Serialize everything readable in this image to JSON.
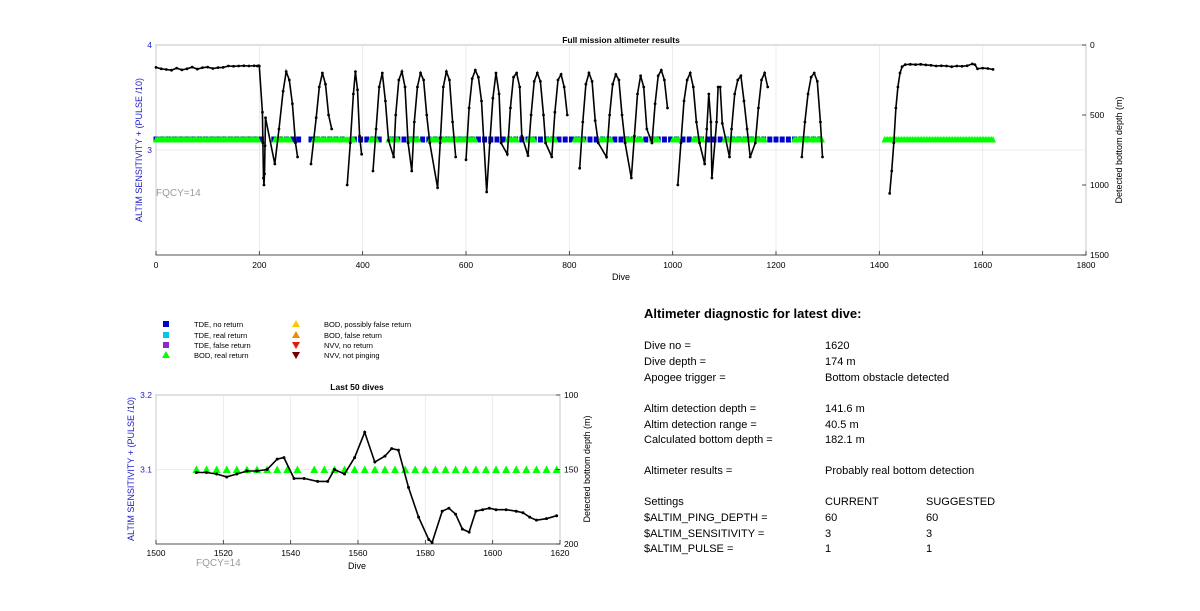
{
  "chart_data": [
    {
      "id": "full",
      "type": "scatter",
      "title": "Full mission altimeter results",
      "xlabel": "Dive",
      "ylabel_left": "ALTIM SENSITIVITY + (PULSE /10)",
      "ylabel_right": "Detected bottom depth (m)",
      "annotation": "FQCY=14",
      "xlim": [
        0,
        1800
      ],
      "xticks": [
        0,
        200,
        400,
        600,
        800,
        1000,
        1200,
        1400,
        1600,
        1800
      ],
      "ylim_left": [
        2.0,
        4.0
      ],
      "yticks_left": [
        3,
        4
      ],
      "ylim_right": [
        0,
        1500
      ],
      "yticks_right": [
        0,
        500,
        1000,
        1500
      ],
      "grid": true,
      "altim_setting_value": 3.1,
      "tde_no_return_dives": [
        0,
        12,
        24,
        36,
        48,
        60,
        72,
        84,
        96,
        108,
        120,
        132,
        144,
        156,
        168,
        180,
        192,
        204,
        228,
        240,
        252,
        264,
        276,
        300,
        312,
        324,
        336,
        348,
        360,
        384,
        396,
        408,
        420,
        432,
        456,
        468,
        480,
        492,
        504,
        516,
        528,
        540,
        552,
        564,
        576,
        588,
        600,
        612,
        624,
        636,
        648,
        660,
        672,
        684,
        696,
        708,
        720,
        732,
        744,
        756,
        768,
        780,
        792,
        804,
        816,
        828,
        840,
        852,
        864,
        876,
        888,
        900,
        912,
        924,
        936,
        948,
        960,
        972,
        984,
        996,
        1008,
        1020,
        1032,
        1044,
        1056,
        1068,
        1080,
        1092,
        1104,
        1116,
        1128,
        1140,
        1152,
        1164,
        1176,
        1188,
        1200,
        1212,
        1224,
        1236,
        1248,
        1260,
        1272,
        1284
      ],
      "bod_real_return_ranges": [
        [
          0,
          200
        ],
        [
          230,
          262
        ],
        [
          305,
          385
        ],
        [
          415,
          428
        ],
        [
          450,
          470
        ],
        [
          490,
          510
        ],
        [
          530,
          545
        ],
        [
          555,
          620
        ],
        [
          680,
          700
        ],
        [
          720,
          732
        ],
        [
          755,
          775
        ],
        [
          810,
          830
        ],
        [
          860,
          882
        ],
        [
          910,
          940
        ],
        [
          960,
          972
        ],
        [
          1000,
          1012
        ],
        [
          1040,
          1060
        ],
        [
          1100,
          1180
        ],
        [
          1235,
          1290
        ],
        [
          1410,
          1620
        ]
      ],
      "detected_bottom_depth_m": [
        [
          0,
          160
        ],
        [
          10,
          170
        ],
        [
          20,
          175
        ],
        [
          30,
          180
        ],
        [
          40,
          165
        ],
        [
          50,
          178
        ],
        [
          60,
          170
        ],
        [
          70,
          158
        ],
        [
          80,
          172
        ],
        [
          90,
          162
        ],
        [
          100,
          158
        ],
        [
          110,
          168
        ],
        [
          120,
          162
        ],
        [
          130,
          160
        ],
        [
          140,
          150
        ],
        [
          150,
          152
        ],
        [
          160,
          150
        ],
        [
          170,
          148
        ],
        [
          180,
          150
        ],
        [
          190,
          148
        ],
        [
          196,
          150
        ],
        [
          199,
          148
        ],
        [
          200,
          150
        ],
        [
          206,
          480
        ],
        [
          207,
          700
        ],
        [
          208,
          950
        ],
        [
          209,
          1000
        ],
        [
          210,
          920
        ],
        [
          211,
          720
        ],
        [
          212,
          520
        ],
        [
          230,
          850
        ],
        [
          238,
          600
        ],
        [
          246,
          330
        ],
        [
          252,
          190
        ],
        [
          258,
          250
        ],
        [
          264,
          420
        ],
        [
          270,
          700
        ],
        [
          274,
          800
        ],
        [
          300,
          850
        ],
        [
          310,
          520
        ],
        [
          316,
          300
        ],
        [
          322,
          200
        ],
        [
          328,
          280
        ],
        [
          334,
          500
        ],
        [
          340,
          600
        ],
        [
          370,
          1000
        ],
        [
          376,
          700
        ],
        [
          382,
          350
        ],
        [
          386,
          190
        ],
        [
          390,
          320
        ],
        [
          394,
          650
        ],
        [
          398,
          780
        ],
        [
          420,
          900
        ],
        [
          426,
          600
        ],
        [
          432,
          300
        ],
        [
          438,
          200
        ],
        [
          444,
          400
        ],
        [
          450,
          680
        ],
        [
          460,
          800
        ],
        [
          464,
          500
        ],
        [
          470,
          250
        ],
        [
          476,
          190
        ],
        [
          482,
          300
        ],
        [
          488,
          700
        ],
        [
          495,
          900
        ],
        [
          500,
          550
        ],
        [
          506,
          300
        ],
        [
          512,
          200
        ],
        [
          518,
          250
        ],
        [
          524,
          500
        ],
        [
          530,
          700
        ],
        [
          545,
          1020
        ],
        [
          550,
          700
        ],
        [
          556,
          300
        ],
        [
          562,
          190
        ],
        [
          568,
          250
        ],
        [
          574,
          550
        ],
        [
          580,
          800
        ],
        [
          600,
          820
        ],
        [
          606,
          450
        ],
        [
          612,
          240
        ],
        [
          618,
          180
        ],
        [
          624,
          230
        ],
        [
          630,
          400
        ],
        [
          640,
          1050
        ],
        [
          646,
          700
        ],
        [
          652,
          380
        ],
        [
          658,
          200
        ],
        [
          664,
          350
        ],
        [
          668,
          700
        ],
        [
          680,
          780
        ],
        [
          686,
          450
        ],
        [
          692,
          230
        ],
        [
          698,
          200
        ],
        [
          704,
          300
        ],
        [
          708,
          650
        ],
        [
          720,
          790
        ],
        [
          726,
          500
        ],
        [
          732,
          260
        ],
        [
          738,
          200
        ],
        [
          744,
          260
        ],
        [
          750,
          500
        ],
        [
          754,
          700
        ],
        [
          766,
          800
        ],
        [
          772,
          480
        ],
        [
          778,
          250
        ],
        [
          784,
          210
        ],
        [
          790,
          300
        ],
        [
          796,
          500
        ],
        [
          820,
          880
        ],
        [
          826,
          550
        ],
        [
          832,
          280
        ],
        [
          838,
          200
        ],
        [
          844,
          260
        ],
        [
          850,
          540
        ],
        [
          856,
          700
        ],
        [
          872,
          800
        ],
        [
          878,
          500
        ],
        [
          884,
          280
        ],
        [
          890,
          210
        ],
        [
          896,
          250
        ],
        [
          902,
          500
        ],
        [
          908,
          700
        ],
        [
          920,
          950
        ],
        [
          926,
          650
        ],
        [
          932,
          350
        ],
        [
          938,
          220
        ],
        [
          944,
          300
        ],
        [
          950,
          600
        ],
        [
          960,
          700
        ],
        [
          966,
          420
        ],
        [
          972,
          220
        ],
        [
          978,
          180
        ],
        [
          984,
          250
        ],
        [
          990,
          450
        ],
        [
          1010,
          1000
        ],
        [
          1016,
          700
        ],
        [
          1022,
          400
        ],
        [
          1028,
          250
        ],
        [
          1034,
          200
        ],
        [
          1040,
          300
        ],
        [
          1046,
          550
        ],
        [
          1052,
          700
        ],
        [
          1062,
          850
        ],
        [
          1066,
          600
        ],
        [
          1070,
          350
        ],
        [
          1074,
          550
        ],
        [
          1076,
          950
        ],
        [
          1085,
          550
        ],
        [
          1088,
          300
        ],
        [
          1092,
          300
        ],
        [
          1096,
          560
        ],
        [
          1110,
          800
        ],
        [
          1114,
          600
        ],
        [
          1120,
          350
        ],
        [
          1126,
          250
        ],
        [
          1132,
          220
        ],
        [
          1138,
          400
        ],
        [
          1144,
          600
        ],
        [
          1150,
          800
        ],
        [
          1160,
          700
        ],
        [
          1166,
          450
        ],
        [
          1172,
          250
        ],
        [
          1178,
          200
        ],
        [
          1184,
          300
        ],
        [
          1250,
          800
        ],
        [
          1256,
          550
        ],
        [
          1262,
          350
        ],
        [
          1268,
          230
        ],
        [
          1274,
          200
        ],
        [
          1280,
          260
        ],
        [
          1286,
          550
        ],
        [
          1290,
          800
        ],
        [
          1420,
          1060
        ],
        [
          1424,
          900
        ],
        [
          1428,
          700
        ],
        [
          1432,
          450
        ],
        [
          1436,
          300
        ],
        [
          1440,
          200
        ],
        [
          1444,
          155
        ],
        [
          1450,
          140
        ],
        [
          1460,
          138
        ],
        [
          1470,
          140
        ],
        [
          1480,
          138
        ],
        [
          1490,
          142
        ],
        [
          1500,
          145
        ],
        [
          1510,
          150
        ],
        [
          1520,
          148
        ],
        [
          1530,
          150
        ],
        [
          1540,
          155
        ],
        [
          1550,
          150
        ],
        [
          1560,
          152
        ],
        [
          1570,
          148
        ],
        [
          1580,
          135
        ],
        [
          1585,
          140
        ],
        [
          1590,
          170
        ],
        [
          1600,
          165
        ],
        [
          1610,
          168
        ],
        [
          1620,
          174
        ]
      ]
    },
    {
      "id": "last50",
      "type": "scatter",
      "title": "Last 50 dives",
      "xlabel": "Dive",
      "ylabel_left": "ALTIM SENSITIVITY + (PULSE /10)",
      "ylabel_right": "Detected bottom depth (m)",
      "annotation": "FQCY=14",
      "xlim": [
        1500,
        1620
      ],
      "xticks": [
        1500,
        1520,
        1540,
        1560,
        1580,
        1600,
        1620
      ],
      "ylim_left": [
        3.0,
        3.2
      ],
      "yticks_left": [
        3.1,
        3.2
      ],
      "ylim_right": [
        100,
        200
      ],
      "yticks_right": [
        100,
        150,
        200
      ],
      "grid": true,
      "bod_real_return": {
        "value": 3.1,
        "dives": [
          1512,
          1515,
          1518,
          1521,
          1524,
          1527,
          1530,
          1533,
          1536,
          1539,
          1542,
          1547,
          1550,
          1553,
          1556,
          1559,
          1562,
          1565,
          1568,
          1571,
          1574,
          1577,
          1580,
          1583,
          1586,
          1589,
          1592,
          1595,
          1598,
          1601,
          1604,
          1607,
          1610,
          1613,
          1616,
          1619
        ]
      },
      "detected_bottom_depth_m": [
        [
          1512,
          152
        ],
        [
          1515,
          152
        ],
        [
          1518,
          153
        ],
        [
          1521,
          155
        ],
        [
          1524,
          153
        ],
        [
          1527,
          151
        ],
        [
          1530,
          151
        ],
        [
          1533,
          150
        ],
        [
          1536,
          143
        ],
        [
          1538,
          142
        ],
        [
          1541,
          156
        ],
        [
          1544,
          156
        ],
        [
          1548,
          158
        ],
        [
          1551,
          158
        ],
        [
          1553,
          150
        ],
        [
          1556,
          153
        ],
        [
          1559,
          142
        ],
        [
          1562,
          125
        ],
        [
          1565,
          145
        ],
        [
          1568,
          141
        ],
        [
          1570,
          136
        ],
        [
          1572,
          137
        ],
        [
          1575,
          162
        ],
        [
          1578,
          182
        ],
        [
          1581,
          197
        ],
        [
          1582,
          199
        ],
        [
          1585,
          178
        ],
        [
          1587,
          176
        ],
        [
          1589,
          180
        ],
        [
          1591,
          190
        ],
        [
          1593,
          192
        ],
        [
          1595,
          178
        ],
        [
          1597,
          177
        ],
        [
          1599,
          176
        ],
        [
          1601,
          177
        ],
        [
          1604,
          177
        ],
        [
          1607,
          178
        ],
        [
          1609,
          179
        ],
        [
          1611,
          182
        ],
        [
          1613,
          184
        ],
        [
          1616,
          183
        ],
        [
          1619,
          181
        ]
      ]
    }
  ],
  "legend": [
    {
      "label": "TDE, no return",
      "marker": "square",
      "color": "#0000c8"
    },
    {
      "label": "TDE, real return",
      "marker": "square",
      "color": "#00c8e6"
    },
    {
      "label": "TDE, false return",
      "marker": "square",
      "color": "#8c28d2"
    },
    {
      "label": "BOD, real return",
      "marker": "triangle-up",
      "color": "#00ff00"
    },
    {
      "label": "BOD, possibly false return",
      "marker": "triangle-up",
      "color": "#ffc800"
    },
    {
      "label": "BOD, false return",
      "marker": "triangle-up",
      "color": "#f08c00"
    },
    {
      "label": "NVV, no return",
      "marker": "triangle-down",
      "color": "#dc1e14"
    },
    {
      "label": "NVV, not pinging",
      "marker": "triangle-down",
      "color": "#780000"
    }
  ],
  "colors": {
    "axis_label_blue": "#1c1cc8",
    "fqcy_gray": "#9b9b9b",
    "depth_line": "#000000",
    "grid": "#e6e6e6"
  },
  "diagnostic": {
    "heading": "Altimeter diagnostic for latest dive:",
    "dive_no_label": "Dive no =",
    "dive_no_value": "1620",
    "dive_depth_label": "Dive depth =",
    "dive_depth_value": "174 m",
    "apogee_label": "Apogee trigger =",
    "apogee_value": "Bottom obstacle detected",
    "altim_depth_label": "Altim detection depth =",
    "altim_depth_value": "141.6 m",
    "altim_range_label": "Altim detection range =",
    "altim_range_value": "40.5 m",
    "calc_bottom_label": "Calculated bottom depth =",
    "calc_bottom_value": "182.1 m",
    "results_label": "Altimeter results =",
    "results_value": "Probably real bottom detection",
    "settings_label": "Settings",
    "current_label": "CURRENT",
    "suggested_label": "SUGGESTED",
    "ping_depth_label": "$ALTIM_PING_DEPTH =",
    "ping_depth_current": "60",
    "ping_depth_suggested": "60",
    "sensitivity_label": "$ALTIM_SENSITIVITY =",
    "sensitivity_current": "3",
    "sensitivity_suggested": "3",
    "pulse_label": "$ALTIM_PULSE =",
    "pulse_current": "1",
    "pulse_suggested": "1"
  }
}
